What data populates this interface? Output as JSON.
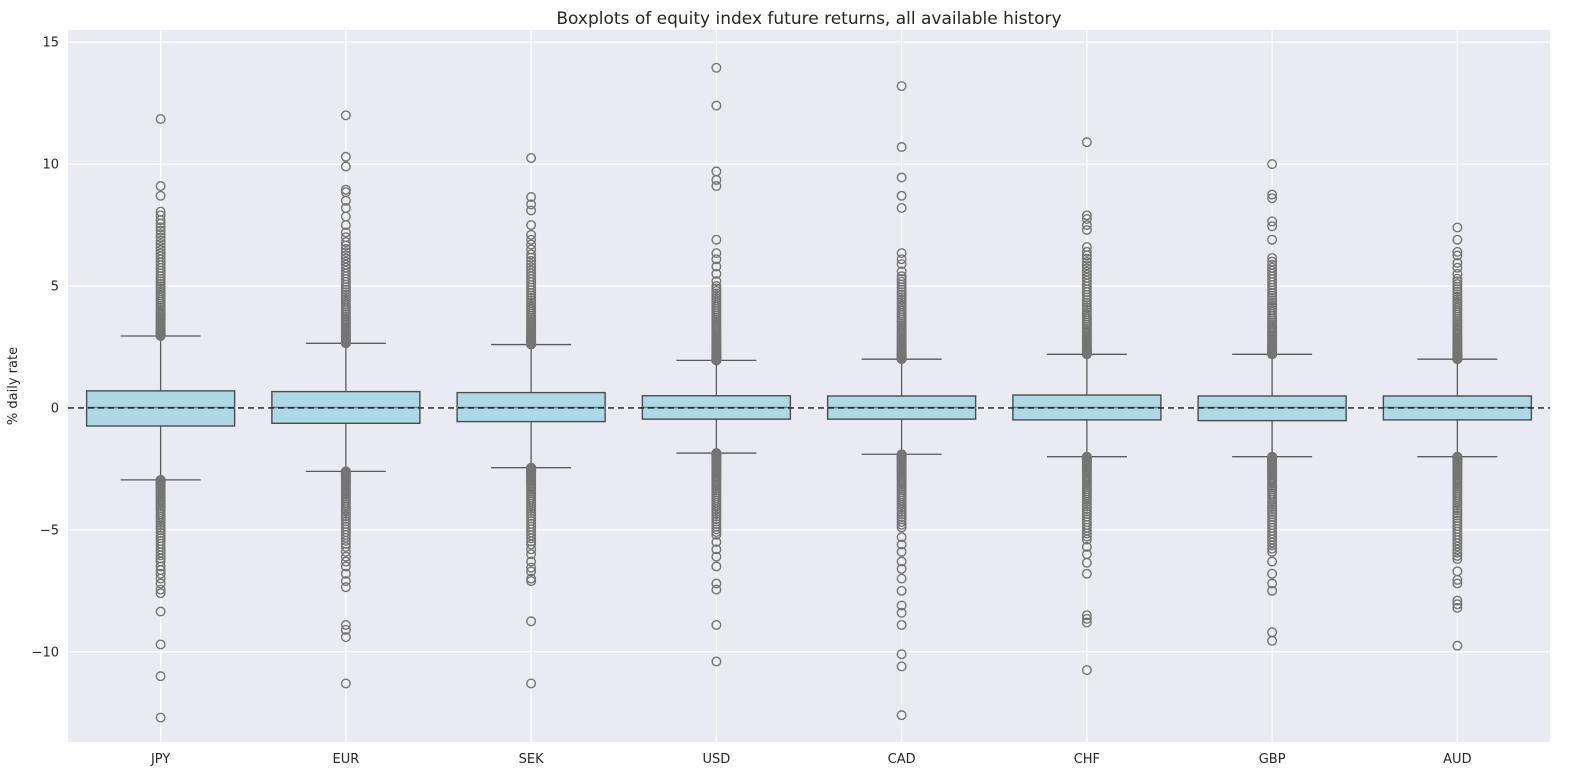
{
  "colors": {
    "figure_background": "#ffffff",
    "plot_background": "#eaeaf2",
    "gridline": "#ffffff",
    "box_fill": "#add8e6",
    "box_edge": "#4c4c4c",
    "whisker": "#5a5a5a",
    "median": "#6e6e6e",
    "flier": "#757575",
    "zero_line": "#1a1a1a",
    "text": "#262626"
  },
  "chart_data": {
    "type": "boxplot",
    "title": "Boxplots of equity index future returns, all available history",
    "xlabel": "",
    "ylabel": "% daily rate",
    "ylim": [
      -13.7,
      15.5
    ],
    "yticks": [
      15,
      10,
      5,
      0,
      -5,
      -10
    ],
    "ytick_labels": [
      "15",
      "10",
      "5",
      "0",
      "−5",
      "−10"
    ],
    "grid": true,
    "legend": "none",
    "zero_reference_line": {
      "value": 0,
      "style": "dashed"
    },
    "categories": [
      "JPY",
      "EUR",
      "SEK",
      "USD",
      "CAD",
      "CHF",
      "GBP",
      "AUD"
    ],
    "series": [
      {
        "name": "JPY",
        "q1": -0.74,
        "median": 0.02,
        "q3": 0.7,
        "whisker_low": -2.95,
        "whisker_high": 2.95,
        "outliers_high_dense": {
          "from": 2.95,
          "to": 7.7,
          "count": 60
        },
        "outliers_high": [
          7.9,
          8.05,
          8.7,
          9.1,
          11.85
        ],
        "outliers_low_dense": {
          "from": -2.95,
          "to": -6.3,
          "count": 48
        },
        "outliers_low": [
          -6.5,
          -6.65,
          -6.8,
          -7.0,
          -7.2,
          -7.45,
          -7.6,
          -8.35,
          -9.7,
          -11.0,
          -12.7
        ]
      },
      {
        "name": "EUR",
        "q1": -0.63,
        "median": 0.02,
        "q3": 0.67,
        "whisker_low": -2.6,
        "whisker_high": 2.65,
        "outliers_high_dense": {
          "from": 2.65,
          "to": 6.8,
          "count": 55
        },
        "outliers_high": [
          7.0,
          7.2,
          7.5,
          7.85,
          8.2,
          8.5,
          8.85,
          8.95,
          9.9,
          10.3,
          12.0
        ],
        "outliers_low_dense": {
          "from": -2.6,
          "to": -5.7,
          "count": 45
        },
        "outliers_low": [
          -5.9,
          -6.1,
          -6.3,
          -6.5,
          -6.8,
          -7.1,
          -7.35,
          -8.9,
          -9.1,
          -9.4,
          -11.3
        ]
      },
      {
        "name": "SEK",
        "q1": -0.56,
        "median": 0.02,
        "q3": 0.63,
        "whisker_low": -2.45,
        "whisker_high": 2.6,
        "outliers_high_dense": {
          "from": 2.6,
          "to": 6.3,
          "count": 50
        },
        "outliers_high": [
          6.5,
          6.7,
          6.9,
          7.1,
          7.5,
          8.1,
          8.35,
          8.65,
          10.25
        ],
        "outliers_low_dense": {
          "from": -2.45,
          "to": -5.6,
          "count": 45
        },
        "outliers_low": [
          -5.8,
          -6.0,
          -6.3,
          -6.55,
          -6.7,
          -7.0,
          -7.1,
          -8.75,
          -11.3
        ]
      },
      {
        "name": "USD",
        "q1": -0.46,
        "median": 0.02,
        "q3": 0.5,
        "whisker_low": -1.85,
        "whisker_high": 1.95,
        "outliers_high_dense": {
          "from": 1.95,
          "to": 5.0,
          "count": 55
        },
        "outliers_high": [
          5.2,
          5.5,
          5.8,
          6.1,
          6.35,
          6.9,
          9.1,
          9.35,
          9.7,
          12.4,
          13.95
        ],
        "outliers_low_dense": {
          "from": -1.85,
          "to": -5.2,
          "count": 55
        },
        "outliers_low": [
          -5.5,
          -5.8,
          -6.1,
          -6.5,
          -7.2,
          -7.45,
          -8.9,
          -10.4
        ]
      },
      {
        "name": "CAD",
        "q1": -0.46,
        "median": 0.02,
        "q3": 0.49,
        "whisker_low": -1.9,
        "whisker_high": 2.0,
        "outliers_high_dense": {
          "from": 2.0,
          "to": 5.4,
          "count": 55
        },
        "outliers_high": [
          5.6,
          5.9,
          6.1,
          6.35,
          8.2,
          8.7,
          9.45,
          10.7,
          13.2
        ],
        "outliers_low_dense": {
          "from": -1.9,
          "to": -4.9,
          "count": 50
        },
        "outliers_low": [
          -5.3,
          -5.6,
          -5.9,
          -6.3,
          -6.6,
          -7.0,
          -7.5,
          -8.1,
          -8.4,
          -8.9,
          -10.1,
          -10.6,
          -12.6
        ]
      },
      {
        "name": "CHF",
        "q1": -0.49,
        "median": 0.02,
        "q3": 0.53,
        "whisker_low": -2.0,
        "whisker_high": 2.2,
        "outliers_high_dense": {
          "from": 2.2,
          "to": 6.4,
          "count": 55
        },
        "outliers_high": [
          6.6,
          7.3,
          7.5,
          7.75,
          7.9,
          10.9
        ],
        "outliers_low_dense": {
          "from": -2.0,
          "to": -5.4,
          "count": 50
        },
        "outliers_low": [
          -5.7,
          -6.0,
          -6.35,
          -6.8,
          -8.5,
          -8.65,
          -8.8,
          -10.75
        ]
      },
      {
        "name": "GBP",
        "q1": -0.52,
        "median": 0.02,
        "q3": 0.49,
        "whisker_low": -2.0,
        "whisker_high": 2.2,
        "outliers_high_dense": {
          "from": 2.2,
          "to": 6.0,
          "count": 55
        },
        "outliers_high": [
          6.15,
          6.9,
          7.45,
          7.65,
          8.6,
          8.75,
          10.0
        ],
        "outliers_low_dense": {
          "from": -2.0,
          "to": -5.9,
          "count": 55
        },
        "outliers_low": [
          -6.3,
          -6.8,
          -7.2,
          -7.5,
          -9.2,
          -9.55
        ]
      },
      {
        "name": "AUD",
        "q1": -0.49,
        "median": 0.02,
        "q3": 0.49,
        "whisker_low": -2.0,
        "whisker_high": 2.0,
        "outliers_high_dense": {
          "from": 2.0,
          "to": 5.3,
          "count": 55
        },
        "outliers_high": [
          5.5,
          5.75,
          5.95,
          6.25,
          6.4,
          6.9,
          7.4
        ],
        "outliers_low_dense": {
          "from": -2.0,
          "to": -6.2,
          "count": 58
        },
        "outliers_low": [
          -6.7,
          -7.05,
          -7.2,
          -7.9,
          -8.05,
          -8.2,
          -9.75
        ]
      }
    ]
  }
}
